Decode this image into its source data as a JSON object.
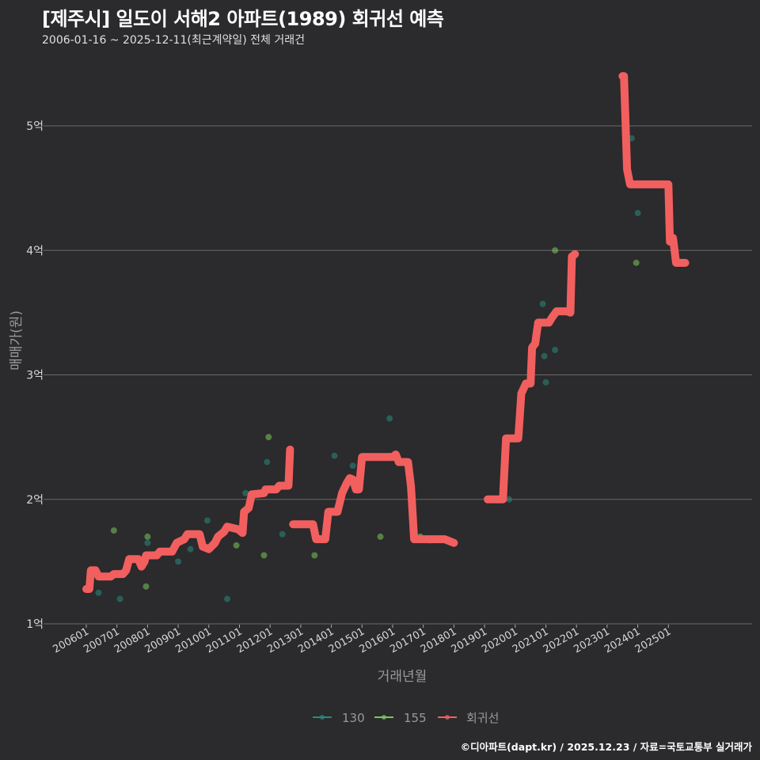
{
  "header": {
    "title": "[제주시] 일도이 서해2 아파트(1989) 회귀선 예측",
    "subtitle": "2006-01-16 ~ 2025-12-11(최근계약일) 전체 거래건"
  },
  "footer": {
    "credit": "©디아파트(dapt.kr) / 2025.12.23 / 자료=국토교통부 실거래가"
  },
  "colors": {
    "background": "#2b2a2c",
    "grid": "#6a6a6a",
    "series_130": "#2a8a7e",
    "series_155": "#7ac85a",
    "regression": "#f25f5f"
  },
  "chart_data": {
    "type": "scatter+line",
    "title": "[제주시] 일도이 서해2 아파트(1989) 회귀선 예측",
    "subtitle": "2006-01-16 ~ 2025-12-11(최근계약일) 전체 거래건",
    "xlabel": "거래년월",
    "ylabel": "매매가(원)",
    "ylim": [
      1,
      5.4
    ],
    "yticks": [
      1,
      2,
      3,
      4,
      5
    ],
    "ytick_labels": [
      "1억",
      "2억",
      "3억",
      "4억",
      "5억"
    ],
    "xticks": [
      "200601",
      "200701",
      "200801",
      "200901",
      "201001",
      "201101",
      "201201",
      "201301",
      "201401",
      "201501",
      "201601",
      "201701",
      "201801",
      "201901",
      "202001",
      "202101",
      "202201",
      "202301",
      "202401",
      "202501"
    ],
    "grid": true,
    "legend_position": "bottom",
    "legend": [
      "130",
      "155",
      "회귀선"
    ],
    "series": [
      {
        "name": "130",
        "type": "scatter",
        "points": [
          [
            2006.4,
            1.25
          ],
          [
            2007.1,
            1.2
          ],
          [
            2008.0,
            1.65
          ],
          [
            2009.0,
            1.5
          ],
          [
            2009.95,
            1.83
          ],
          [
            2010.6,
            1.2
          ],
          [
            2011.2,
            2.05
          ],
          [
            2011.9,
            2.3
          ],
          [
            2014.1,
            2.35
          ],
          [
            2014.7,
            2.27
          ],
          [
            2015.9,
            2.65
          ],
          [
            2017.2,
            1.67
          ],
          [
            2019.8,
            2.0
          ],
          [
            2020.9,
            3.57
          ],
          [
            2021.0,
            2.94
          ],
          [
            2020.95,
            3.15
          ],
          [
            2021.3,
            3.2
          ],
          [
            2023.8,
            4.9
          ],
          [
            2024.0,
            4.3
          ],
          [
            2009.4,
            1.6
          ],
          [
            2012.4,
            1.72
          ]
        ]
      },
      {
        "name": "155",
        "type": "scatter",
        "points": [
          [
            2006.9,
            1.75
          ],
          [
            2008.0,
            1.7
          ],
          [
            2007.95,
            1.3
          ],
          [
            2011.8,
            1.55
          ],
          [
            2011.95,
            2.5
          ],
          [
            2013.45,
            1.55
          ],
          [
            2015.6,
            1.7
          ],
          [
            2016.9,
            1.7
          ],
          [
            2021.3,
            4.0
          ],
          [
            2023.95,
            3.9
          ],
          [
            2010.9,
            1.63
          ]
        ]
      },
      {
        "name": "회귀선",
        "type": "line",
        "points": [
          [
            2006.0,
            1.28
          ],
          [
            2006.1,
            1.28
          ],
          [
            2006.15,
            1.43
          ],
          [
            2006.3,
            1.43
          ],
          [
            2006.4,
            1.38
          ],
          [
            2006.8,
            1.38
          ],
          [
            2006.9,
            1.4
          ],
          [
            2007.2,
            1.4
          ],
          [
            2007.3,
            1.43
          ],
          [
            2007.4,
            1.52
          ],
          [
            2007.7,
            1.52
          ],
          [
            2007.8,
            1.46
          ],
          [
            2007.9,
            1.5
          ],
          [
            2007.95,
            1.55
          ],
          [
            2008.3,
            1.55
          ],
          [
            2008.4,
            1.58
          ],
          [
            2008.8,
            1.58
          ],
          [
            2008.95,
            1.65
          ],
          [
            2009.2,
            1.68
          ],
          [
            2009.3,
            1.72
          ],
          [
            2009.7,
            1.72
          ],
          [
            2009.8,
            1.62
          ],
          [
            2010.0,
            1.6
          ],
          [
            2010.2,
            1.65
          ],
          [
            2010.3,
            1.7
          ],
          [
            2010.5,
            1.74
          ],
          [
            2010.6,
            1.78
          ],
          [
            2010.95,
            1.76
          ],
          [
            2011.1,
            1.73
          ],
          [
            2011.15,
            1.9
          ],
          [
            2011.3,
            1.93
          ],
          [
            2011.4,
            2.04
          ],
          [
            2011.8,
            2.05
          ],
          [
            2011.85,
            2.08
          ],
          [
            2012.2,
            2.08
          ],
          [
            2012.3,
            2.11
          ],
          [
            2012.6,
            2.11
          ],
          [
            2012.65,
            2.4
          ],
          null,
          [
            2012.75,
            1.8
          ],
          [
            2013.4,
            1.8
          ],
          [
            2013.5,
            1.68
          ],
          [
            2013.8,
            1.68
          ],
          [
            2013.9,
            1.9
          ],
          [
            2014.2,
            1.9
          ],
          [
            2014.35,
            2.05
          ],
          [
            2014.5,
            2.13
          ],
          [
            2014.6,
            2.17
          ],
          [
            2014.7,
            2.16
          ],
          [
            2014.8,
            2.08
          ],
          [
            2014.9,
            2.08
          ],
          [
            2015.0,
            2.34
          ],
          [
            2016.0,
            2.34
          ],
          [
            2016.1,
            2.36
          ],
          [
            2016.2,
            2.3
          ],
          [
            2016.5,
            2.3
          ],
          [
            2016.6,
            2.1
          ],
          [
            2016.7,
            1.68
          ],
          [
            2017.7,
            1.68
          ],
          [
            2018.0,
            1.65
          ],
          null,
          [
            2019.1,
            2.0
          ],
          [
            2019.6,
            2.0
          ],
          [
            2019.7,
            2.49
          ],
          [
            2020.1,
            2.49
          ],
          [
            2020.2,
            2.85
          ],
          [
            2020.35,
            2.93
          ],
          [
            2020.5,
            2.93
          ],
          [
            2020.55,
            3.22
          ],
          [
            2020.65,
            3.25
          ],
          [
            2020.75,
            3.42
          ],
          [
            2021.1,
            3.42
          ],
          [
            2021.2,
            3.46
          ],
          [
            2021.35,
            3.51
          ],
          [
            2021.7,
            3.51
          ],
          [
            2021.8,
            3.5
          ],
          [
            2021.85,
            3.95
          ],
          [
            2021.95,
            3.97
          ],
          null,
          [
            2023.5,
            5.4
          ],
          [
            2023.55,
            5.4
          ],
          [
            2023.65,
            4.65
          ],
          [
            2023.75,
            4.53
          ],
          [
            2025.0,
            4.53
          ],
          [
            2025.05,
            4.07
          ],
          [
            2025.15,
            4.1
          ],
          [
            2025.25,
            3.9
          ],
          [
            2025.55,
            3.9
          ]
        ]
      }
    ]
  }
}
